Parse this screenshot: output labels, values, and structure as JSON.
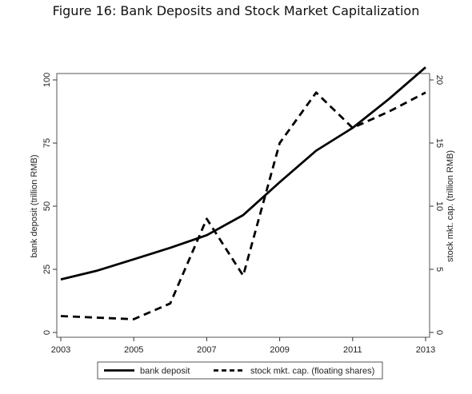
{
  "figure": {
    "title": "Figure 16: Bank Deposits and Stock Market Capitalization"
  },
  "chart_data": {
    "type": "line",
    "title": "Figure 16: Bank Deposits and Stock Market Capitalization",
    "xlabel": "",
    "ylabel_left": "bank deposit (trillion RMB)",
    "ylabel_right": "stock mkt. cap. (trillion RMB)",
    "x_ticks": [
      "2003",
      "2005",
      "2007",
      "2009",
      "2011",
      "2013"
    ],
    "x_range": [
      2003,
      2013
    ],
    "y_left_ticks": [
      "0",
      "25",
      "50",
      "75",
      "100"
    ],
    "y_left_range": [
      0,
      100
    ],
    "y_right_ticks": [
      "0",
      "5",
      "10",
      "15",
      "20"
    ],
    "y_right_range": [
      0,
      20
    ],
    "grid": false,
    "legend_position": "bottom",
    "series": [
      {
        "name": "bank deposit",
        "axis": "left",
        "style": "solid",
        "color": "#000000",
        "x": [
          2003,
          2004,
          2005,
          2006,
          2007,
          2008,
          2009,
          2010,
          2011,
          2012,
          2013
        ],
        "values": [
          21,
          24.5,
          29,
          33.5,
          38.5,
          46.5,
          59.5,
          72,
          81,
          92.5,
          105
        ]
      },
      {
        "name": "stock mkt. cap. (floating shares)",
        "axis": "right",
        "style": "dashed",
        "color": "#000000",
        "x": [
          2003,
          2005,
          2006,
          2007,
          2008,
          2009,
          2010,
          2011,
          2012,
          2013
        ],
        "values": [
          1.3,
          1.05,
          2.3,
          9,
          4.5,
          15,
          19,
          16.2,
          17.5,
          19
        ]
      }
    ]
  }
}
